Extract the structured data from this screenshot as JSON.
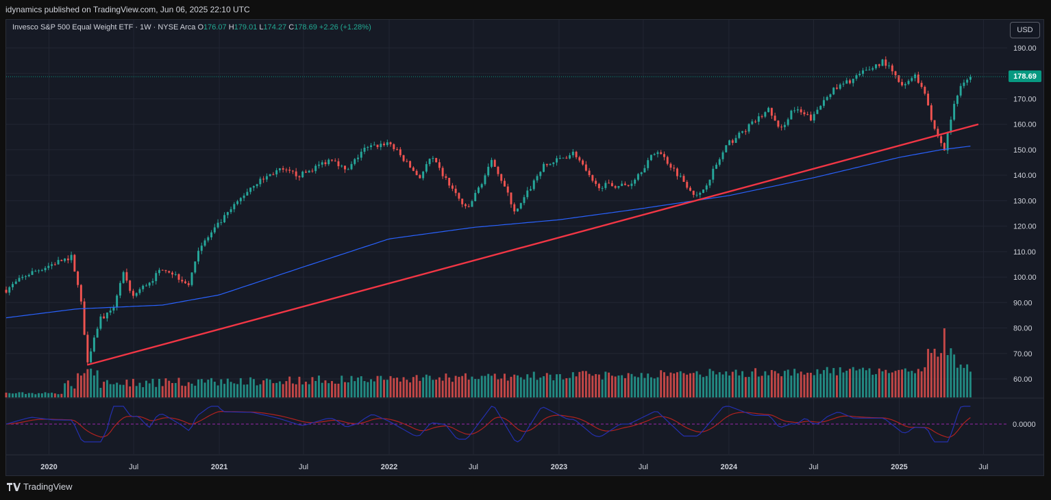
{
  "header": {
    "publisher_text": "idynamics published on TradingView.com, Jun 06, 2025 22:10 UTC"
  },
  "legend": {
    "symbol": "Invesco S&P 500 Equal Weight ETF · 1W · NYSE Arca",
    "open_label": "O",
    "open": "176.07",
    "high_label": "H",
    "high": "179.01",
    "low_label": "L",
    "low": "174.27",
    "close_label": "C",
    "close": "178.69",
    "change": "+2.26 (+1.28%)"
  },
  "currency_button": "USD",
  "last_price_label": "178.69",
  "footer": {
    "brand": "TradingView"
  },
  "colors": {
    "up": "#26a69a",
    "down": "#ef5350",
    "ma": "#2962ff",
    "trendline": "#f23645",
    "signal": "#b2221f",
    "macd": "#2430b0",
    "last_price": "#089981"
  },
  "chart_data": {
    "type": "candlestick",
    "title": "Invesco S&P 500 Equal Weight ETF · 1W · NYSE Arca",
    "ylim": [
      56,
      191
    ],
    "y_ticks": [
      "190.00",
      "180.00",
      "170.00",
      "160.00",
      "150.00",
      "140.00",
      "130.00",
      "120.00",
      "110.00",
      "100.00",
      "90.00",
      "80.00",
      "70.00",
      "60.00"
    ],
    "y_tick_values": [
      190,
      180,
      170,
      160,
      150,
      140,
      130,
      120,
      110,
      100,
      90,
      80,
      70,
      60
    ],
    "x_tick_labels": [
      "2020",
      "Jul",
      "2021",
      "Jul",
      "2022",
      "Jul",
      "2023",
      "Jul",
      "2024",
      "Jul",
      "2025",
      "Jul"
    ],
    "x_tick_dates": [
      "2020-01-01",
      "2020-07-01",
      "2021-01-01",
      "2021-07-01",
      "2022-01-01",
      "2022-07-01",
      "2023-01-01",
      "2023-07-01",
      "2024-01-01",
      "2024-07-01",
      "2025-01-01",
      "2025-07-01"
    ],
    "x_range": [
      "2019-10-01",
      "2025-08-15"
    ],
    "last_price": 178.69,
    "close_anchors": [
      [
        "2019-10-01",
        95
      ],
      [
        "2019-11-15",
        101
      ],
      [
        "2020-01-20",
        106
      ],
      [
        "2020-02-20",
        108
      ],
      [
        "2020-03-10",
        90
      ],
      [
        "2020-03-23",
        67
      ],
      [
        "2020-04-20",
        84
      ],
      [
        "2020-05-15",
        86
      ],
      [
        "2020-06-08",
        102
      ],
      [
        "2020-06-26",
        92
      ],
      [
        "2020-08-15",
        100
      ],
      [
        "2020-09-02",
        104
      ],
      [
        "2020-10-30",
        97
      ],
      [
        "2020-11-13",
        110
      ],
      [
        "2021-01-01",
        121
      ],
      [
        "2021-03-12",
        136
      ],
      [
        "2021-05-07",
        142
      ],
      [
        "2021-06-25",
        140
      ],
      [
        "2021-09-03",
        147
      ],
      [
        "2021-10-01",
        141
      ],
      [
        "2021-11-05",
        150
      ],
      [
        "2021-12-31",
        153
      ],
      [
        "2022-03-07",
        139
      ],
      [
        "2022-04-01",
        147
      ],
      [
        "2022-06-17",
        126
      ],
      [
        "2022-08-12",
        146
      ],
      [
        "2022-09-30",
        125
      ],
      [
        "2022-11-25",
        143
      ],
      [
        "2023-02-03",
        149
      ],
      [
        "2023-03-17",
        136
      ],
      [
        "2023-05-31",
        136
      ],
      [
        "2023-07-31",
        150
      ],
      [
        "2023-10-27",
        131
      ],
      [
        "2023-12-29",
        152
      ],
      [
        "2024-03-28",
        166
      ],
      [
        "2024-04-19",
        157
      ],
      [
        "2024-05-17",
        166
      ],
      [
        "2024-06-28",
        162
      ],
      [
        "2024-07-31",
        172
      ],
      [
        "2024-11-29",
        185
      ],
      [
        "2025-01-10",
        174
      ],
      [
        "2025-01-31",
        180
      ],
      [
        "2025-02-28",
        172
      ],
      [
        "2025-03-13",
        160
      ],
      [
        "2025-04-08",
        150
      ],
      [
        "2025-04-25",
        165
      ],
      [
        "2025-05-16",
        177
      ],
      [
        "2025-06-06",
        178.69
      ]
    ],
    "ma_anchors": [
      [
        "2019-10-01",
        84
      ],
      [
        "2020-03-01",
        87.5
      ],
      [
        "2020-09-01",
        89
      ],
      [
        "2021-01-01",
        93
      ],
      [
        "2021-07-01",
        104
      ],
      [
        "2022-01-01",
        115
      ],
      [
        "2022-07-01",
        119.5
      ],
      [
        "2023-01-01",
        122.5
      ],
      [
        "2023-07-01",
        127
      ],
      [
        "2024-01-01",
        132
      ],
      [
        "2024-07-01",
        139
      ],
      [
        "2025-01-01",
        147
      ],
      [
        "2025-04-01",
        150
      ],
      [
        "2025-06-06",
        151.5
      ]
    ],
    "trendline": [
      [
        "2020-03-23",
        65.5
      ],
      [
        "2025-06-20",
        160
      ]
    ],
    "volume_range": [
      0,
      100
    ],
    "volume_spike_date": "2025-04-11",
    "oscillator_zero_label": "0.0000",
    "oscillator_zero": 0
  }
}
